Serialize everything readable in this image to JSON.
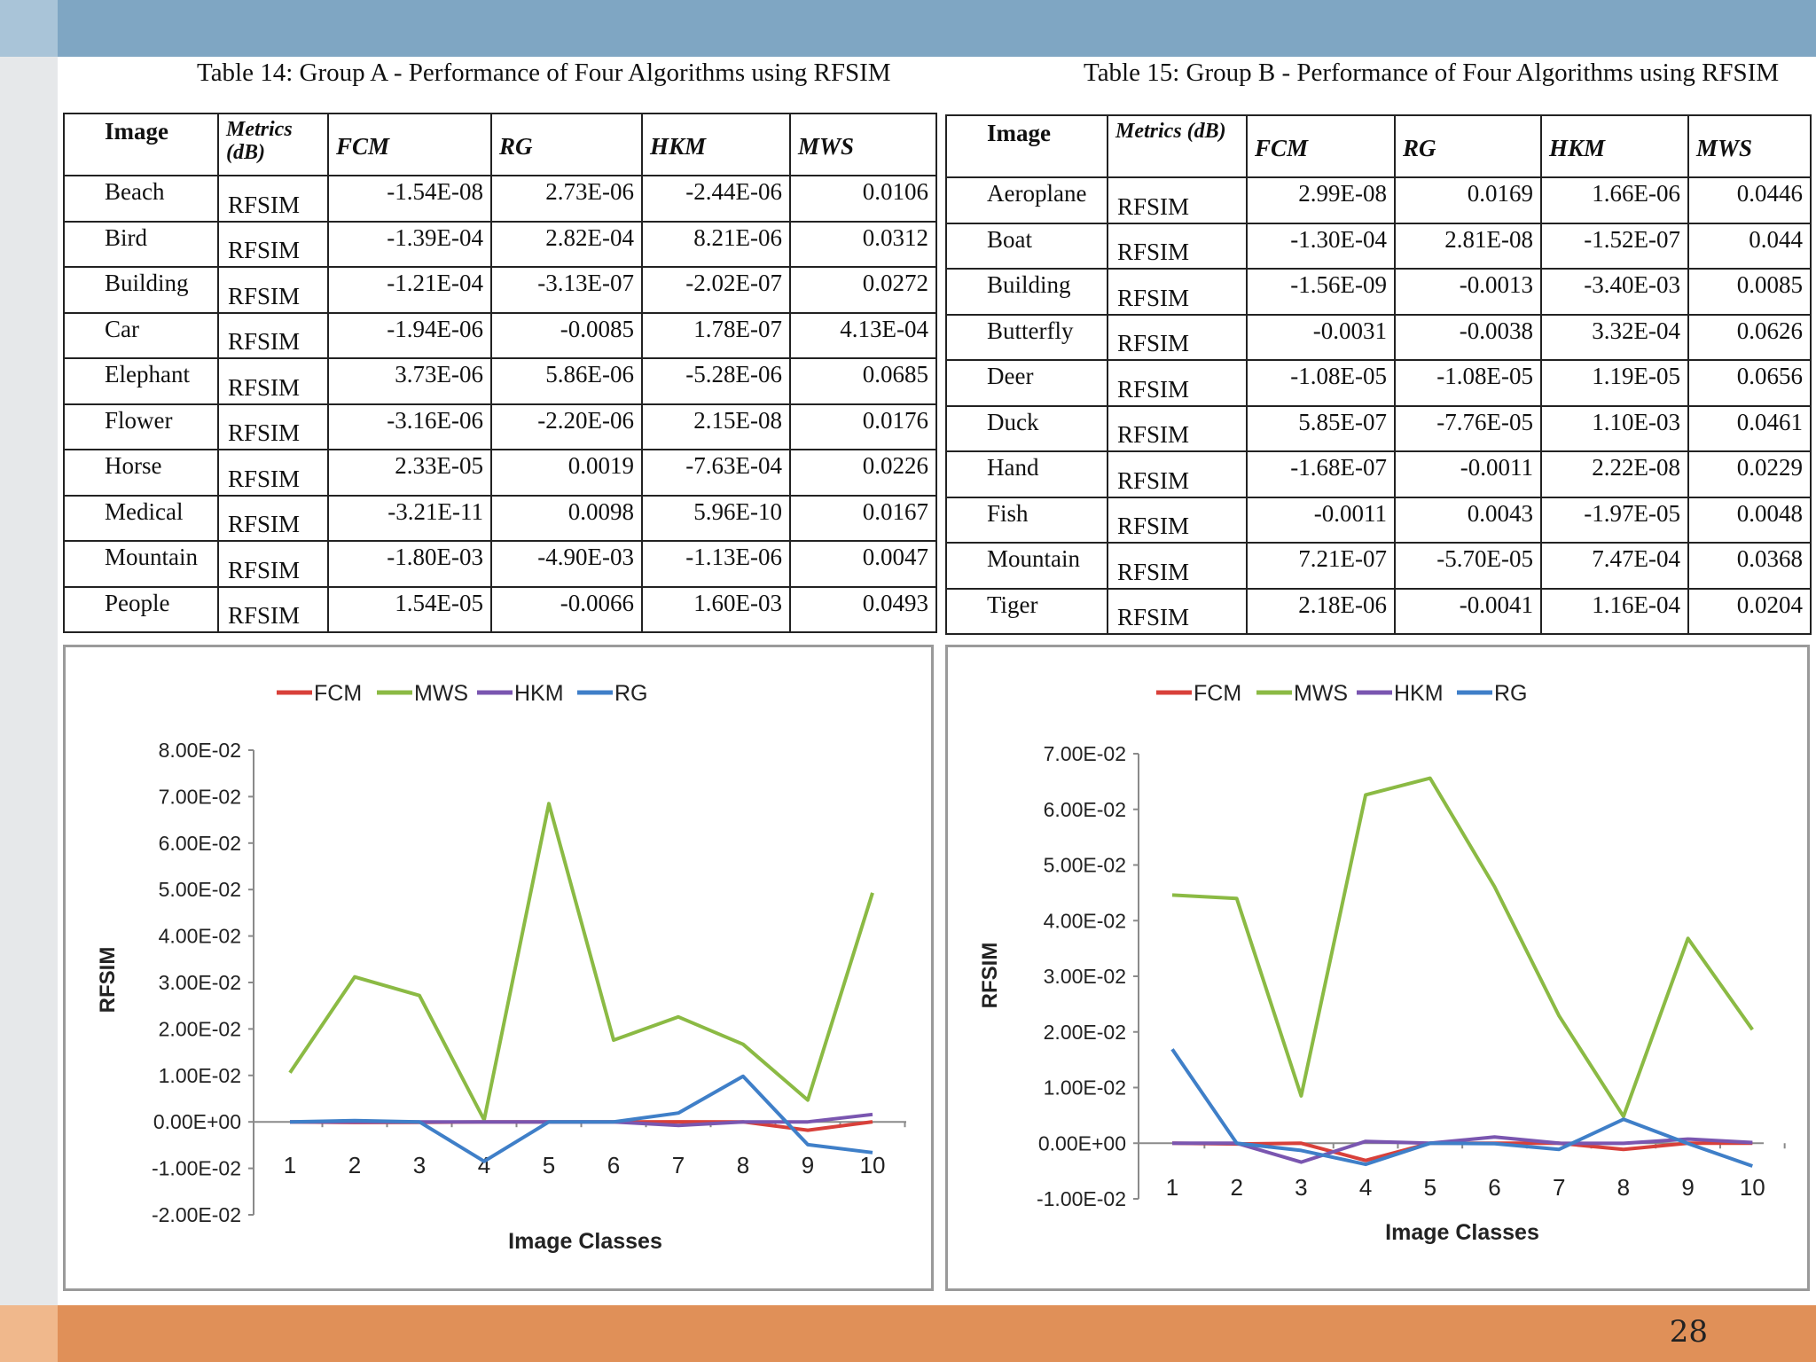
{
  "slide_number": "28",
  "table_a": {
    "caption": "Table 14: Group A - Performance of Four Algorithms using RFSIM",
    "headers": {
      "image": "Image",
      "metrics": "Metrics (dB)",
      "fcm": "FCM",
      "rg": "RG",
      "hkm": "HKM",
      "mws": "MWS"
    },
    "rows": [
      {
        "image": "Beach",
        "metric": "RFSIM",
        "fcm": "-1.54E-08",
        "rg": "2.73E-06",
        "hkm": "-2.44E-06",
        "mws": "0.0106"
      },
      {
        "image": "Bird",
        "metric": "RFSIM",
        "fcm": "-1.39E-04",
        "rg": "2.82E-04",
        "hkm": "8.21E-06",
        "mws": "0.0312"
      },
      {
        "image": "Building",
        "metric": "RFSIM",
        "fcm": "-1.21E-04",
        "rg": "-3.13E-07",
        "hkm": "-2.02E-07",
        "mws": "0.0272"
      },
      {
        "image": "Car",
        "metric": "RFSIM",
        "fcm": "-1.94E-06",
        "rg": "-0.0085",
        "hkm": "1.78E-07",
        "mws": "4.13E-04"
      },
      {
        "image": "Elephant",
        "metric": "RFSIM",
        "fcm": "3.73E-06",
        "rg": "5.86E-06",
        "hkm": "-5.28E-06",
        "mws": "0.0685"
      },
      {
        "image": "Flower",
        "metric": "RFSIM",
        "fcm": "-3.16E-06",
        "rg": "-2.20E-06",
        "hkm": "2.15E-08",
        "mws": "0.0176"
      },
      {
        "image": "Horse",
        "metric": "RFSIM",
        "fcm": "2.33E-05",
        "rg": "0.0019",
        "hkm": "-7.63E-04",
        "mws": "0.0226"
      },
      {
        "image": "Medical",
        "metric": "RFSIM",
        "fcm": "-3.21E-11",
        "rg": "0.0098",
        "hkm": "5.96E-10",
        "mws": "0.0167"
      },
      {
        "image": "Mountain",
        "metric": "RFSIM",
        "fcm": "-1.80E-03",
        "rg": "-4.90E-03",
        "hkm": "-1.13E-06",
        "mws": "0.0047"
      },
      {
        "image": "People",
        "metric": "RFSIM",
        "fcm": "1.54E-05",
        "rg": "-0.0066",
        "hkm": "1.60E-03",
        "mws": "0.0493"
      }
    ]
  },
  "table_b": {
    "caption": "Table 15: Group B - Performance of Four Algorithms using RFSIM",
    "headers": {
      "image": "Image",
      "metrics": "Metrics (dB)",
      "fcm": "FCM",
      "rg": "RG",
      "hkm": "HKM",
      "mws": "MWS"
    },
    "rows": [
      {
        "image": "Aeroplane",
        "metric": "RFSIM",
        "fcm": "2.99E-08",
        "rg": "0.0169",
        "hkm": "1.66E-06",
        "mws": "0.0446"
      },
      {
        "image": "Boat",
        "metric": "RFSIM",
        "fcm": "-1.30E-04",
        "rg": "2.81E-08",
        "hkm": "-1.52E-07",
        "mws": "0.044"
      },
      {
        "image": "Building",
        "metric": "RFSIM",
        "fcm": "-1.56E-09",
        "rg": "-0.0013",
        "hkm": "-3.40E-03",
        "mws": "0.0085"
      },
      {
        "image": "Butterfly",
        "metric": "RFSIM",
        "fcm": "-0.0031",
        "rg": "-0.0038",
        "hkm": "3.32E-04",
        "mws": "0.0626"
      },
      {
        "image": "Deer",
        "metric": "RFSIM",
        "fcm": "-1.08E-05",
        "rg": "-1.08E-05",
        "hkm": "1.19E-05",
        "mws": "0.0656"
      },
      {
        "image": "Duck",
        "metric": "RFSIM",
        "fcm": "5.85E-07",
        "rg": "-7.76E-05",
        "hkm": "1.10E-03",
        "mws": "0.0461"
      },
      {
        "image": "Hand",
        "metric": "RFSIM",
        "fcm": "-1.68E-07",
        "rg": "-0.0011",
        "hkm": "2.22E-08",
        "mws": "0.0229"
      },
      {
        "image": "Fish",
        "metric": "RFSIM",
        "fcm": "-0.0011",
        "rg": "0.0043",
        "hkm": "-1.97E-05",
        "mws": "0.0048"
      },
      {
        "image": "Mountain",
        "metric": "RFSIM",
        "fcm": "7.21E-07",
        "rg": "-5.70E-05",
        "hkm": "7.47E-04",
        "mws": "0.0368"
      },
      {
        "image": "Tiger",
        "metric": "RFSIM",
        "fcm": "2.18E-06",
        "rg": "-0.0041",
        "hkm": "1.16E-04",
        "mws": "0.0204"
      }
    ]
  },
  "chart_data": [
    {
      "type": "line",
      "xlabel": "Image Classes",
      "ylabel": "RFSIM",
      "x": [
        1,
        2,
        3,
        4,
        5,
        6,
        7,
        8,
        9,
        10
      ],
      "ylim": [
        -0.02,
        0.08
      ],
      "yticks": [
        "8.00E-02",
        "7.00E-02",
        "6.00E-02",
        "5.00E-02",
        "4.00E-02",
        "3.00E-02",
        "2.00E-02",
        "1.00E-02",
        "0.00E+00",
        "-1.00E-02",
        "-2.00E-02"
      ],
      "ytick_values": [
        0.08,
        0.07,
        0.06,
        0.05,
        0.04,
        0.03,
        0.02,
        0.01,
        0,
        -0.01,
        -0.02
      ],
      "legend_position": "top",
      "series": [
        {
          "name": "FCM",
          "color": "#d8403a",
          "values": [
            0,
            -0.000139,
            -0.000121,
            -1.9e-06,
            3.7e-06,
            -3.2e-06,
            2.33e-05,
            0,
            -0.0018,
            1.54e-05
          ]
        },
        {
          "name": "MWS",
          "color": "#8bba44",
          "values": [
            0.0106,
            0.0312,
            0.0272,
            0.000413,
            0.0685,
            0.0176,
            0.0226,
            0.0167,
            0.0047,
            0.0493
          ]
        },
        {
          "name": "HKM",
          "color": "#7a56b0",
          "values": [
            -2.4e-06,
            8.2e-06,
            0,
            0,
            -5.3e-06,
            0,
            -0.000763,
            0,
            -1.1e-06,
            0.0016
          ]
        },
        {
          "name": "RG",
          "color": "#3f7fc8",
          "values": [
            2.7e-06,
            0.000282,
            0,
            -0.0085,
            5.9e-06,
            -2.2e-06,
            0.0019,
            0.0098,
            -0.0049,
            -0.0066
          ]
        }
      ]
    },
    {
      "type": "line",
      "xlabel": "Image Classes",
      "ylabel": "RFSIM",
      "x": [
        1,
        2,
        3,
        4,
        5,
        6,
        7,
        8,
        9,
        10
      ],
      "ylim": [
        -0.01,
        0.07
      ],
      "yticks": [
        "7.00E-02",
        "6.00E-02",
        "5.00E-02",
        "4.00E-02",
        "3.00E-02",
        "2.00E-02",
        "1.00E-02",
        "0.00E+00",
        "-1.00E-02"
      ],
      "ytick_values": [
        0.07,
        0.06,
        0.05,
        0.04,
        0.03,
        0.02,
        0.01,
        0,
        -0.01
      ],
      "legend_position": "top",
      "series": [
        {
          "name": "FCM",
          "color": "#d8403a",
          "values": [
            0,
            -0.00013,
            0,
            -0.0031,
            -1.08e-05,
            6e-07,
            -2e-07,
            -0.0011,
            7e-07,
            2.2e-06
          ]
        },
        {
          "name": "MWS",
          "color": "#8bba44",
          "values": [
            0.0446,
            0.044,
            0.0085,
            0.0626,
            0.0656,
            0.0461,
            0.0229,
            0.0048,
            0.0368,
            0.0204
          ]
        },
        {
          "name": "HKM",
          "color": "#7a56b0",
          "values": [
            1.7e-06,
            0,
            -0.0034,
            0.000332,
            1.19e-05,
            0.0011,
            0,
            -1.97e-05,
            0.000747,
            0.000116
          ]
        },
        {
          "name": "RG",
          "color": "#3f7fc8",
          "values": [
            0.0169,
            0,
            -0.0013,
            -0.0038,
            -1.08e-05,
            -7.76e-05,
            -0.0011,
            0.0043,
            -5.7e-05,
            -0.0041
          ]
        }
      ]
    }
  ]
}
